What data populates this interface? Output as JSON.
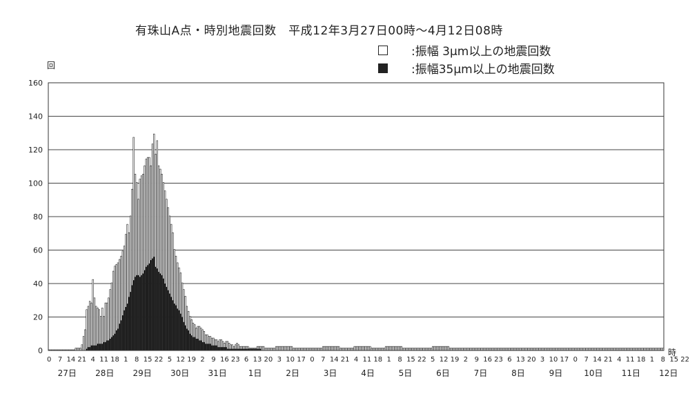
{
  "title": "有珠山A点・時別地震回数　平成12年3月27日00時～4月12日08時",
  "legend": [
    {
      "symbol": "□",
      "label": ":振幅 3μm以上の地震回数"
    },
    {
      "symbol": "■",
      "label": ":振幅35μm以上の地震回数"
    }
  ],
  "yunit": "回",
  "xunit": "時",
  "chart_data": {
    "type": "bar",
    "title": "有珠山A点・時別地震回数　平成12年3月27日00時～4月12日08時",
    "ylabel": "回",
    "xlabel": "時",
    "ylim": [
      0,
      160
    ],
    "yticks": [
      0,
      20,
      40,
      60,
      80,
      100,
      120,
      140,
      160
    ],
    "grid": "horizontal",
    "legend_position": "top-right",
    "hour_tick_labels": [
      "0",
      "7",
      "14",
      "21",
      "4",
      "11",
      "18",
      "1",
      "8",
      "15",
      "22",
      "5",
      "12",
      "19",
      "2",
      "9",
      "16",
      "23",
      "6",
      "13",
      "20",
      "3",
      "10",
      "17",
      "0",
      "7",
      "14",
      "21",
      "4",
      "11",
      "18",
      "1",
      "8",
      "15",
      "22",
      "5",
      "12",
      "19",
      "2",
      "9",
      "16",
      "23",
      "6",
      "13",
      "20",
      "3",
      "10",
      "17",
      "0",
      "7",
      "14",
      "21",
      "4",
      "11",
      "18",
      "1",
      "8",
      "15",
      "22"
    ],
    "day_labels": [
      "27日",
      "28日",
      "29日",
      "30日",
      "31日",
      "1日",
      "2日",
      "3日",
      "4日",
      "5日",
      "6日",
      "7日",
      "8日",
      "9日",
      "10日",
      "11日",
      "12日"
    ],
    "series": [
      {
        "name": "振幅 3μm以上の地震回数",
        "anchors": [
          [
            0,
            0
          ],
          [
            6,
            0
          ],
          [
            14,
            0
          ],
          [
            20,
            1
          ],
          [
            21,
            3
          ],
          [
            22,
            8
          ],
          [
            23,
            12
          ],
          [
            24,
            24
          ],
          [
            25,
            26
          ],
          [
            26,
            29
          ],
          [
            27,
            28
          ],
          [
            28,
            42
          ],
          [
            29,
            31
          ],
          [
            30,
            26
          ],
          [
            31,
            25
          ],
          [
            32,
            24
          ],
          [
            33,
            20
          ],
          [
            34,
            25
          ],
          [
            35,
            20
          ],
          [
            36,
            28
          ],
          [
            37,
            28
          ],
          [
            38,
            31
          ],
          [
            39,
            36
          ],
          [
            40,
            40
          ],
          [
            41,
            47
          ],
          [
            42,
            50
          ],
          [
            44,
            52
          ],
          [
            46,
            56
          ],
          [
            48,
            62
          ],
          [
            50,
            75
          ],
          [
            51,
            70
          ],
          [
            52,
            80
          ],
          [
            53,
            96
          ],
          [
            54,
            127
          ],
          [
            55,
            105
          ],
          [
            56,
            100
          ],
          [
            57,
            90
          ],
          [
            58,
            102
          ],
          [
            60,
            105
          ],
          [
            62,
            114
          ],
          [
            64,
            115
          ],
          [
            65,
            110
          ],
          [
            66,
            123
          ],
          [
            67,
            129
          ],
          [
            68,
            117
          ],
          [
            69,
            125
          ],
          [
            70,
            110
          ],
          [
            72,
            105
          ],
          [
            74,
            95
          ],
          [
            76,
            85
          ],
          [
            78,
            75
          ],
          [
            79,
            70
          ],
          [
            80,
            60
          ],
          [
            82,
            52
          ],
          [
            84,
            46
          ],
          [
            85,
            40
          ],
          [
            87,
            32
          ],
          [
            88,
            26
          ],
          [
            89,
            23
          ],
          [
            90,
            20
          ],
          [
            92,
            16
          ],
          [
            94,
            13
          ],
          [
            96,
            14
          ],
          [
            98,
            12
          ],
          [
            100,
            9
          ],
          [
            102,
            8
          ],
          [
            104,
            7
          ],
          [
            106,
            6
          ],
          [
            108,
            5
          ],
          [
            110,
            6
          ],
          [
            112,
            4
          ],
          [
            114,
            5
          ],
          [
            116,
            3
          ],
          [
            118,
            2
          ],
          [
            120,
            4
          ],
          [
            122,
            2
          ],
          [
            124,
            2
          ],
          [
            126,
            2
          ],
          [
            128,
            1
          ],
          [
            130,
            1
          ],
          [
            135,
            2
          ],
          [
            140,
            1
          ],
          [
            150,
            2
          ],
          [
            160,
            1
          ],
          [
            170,
            1
          ],
          [
            180,
            2
          ],
          [
            190,
            1
          ],
          [
            200,
            2
          ],
          [
            210,
            1
          ],
          [
            220,
            2
          ],
          [
            230,
            1
          ],
          [
            240,
            1
          ],
          [
            250,
            2
          ],
          [
            260,
            1
          ],
          [
            270,
            1
          ],
          [
            280,
            1
          ],
          [
            290,
            1
          ],
          [
            300,
            1
          ],
          [
            310,
            1
          ],
          [
            320,
            1
          ],
          [
            330,
            1
          ],
          [
            340,
            1
          ],
          [
            350,
            1
          ],
          [
            360,
            1
          ],
          [
            370,
            1
          ],
          [
            380,
            1
          ],
          [
            392,
            1
          ]
        ]
      },
      {
        "name": "振幅35μm以上の地震回数",
        "anchors": [
          [
            0,
            0
          ],
          [
            23,
            0
          ],
          [
            24,
            1
          ],
          [
            26,
            2
          ],
          [
            28,
            3
          ],
          [
            30,
            3
          ],
          [
            32,
            4
          ],
          [
            34,
            4
          ],
          [
            36,
            5
          ],
          [
            38,
            6
          ],
          [
            40,
            8
          ],
          [
            42,
            10
          ],
          [
            44,
            13
          ],
          [
            46,
            18
          ],
          [
            48,
            24
          ],
          [
            50,
            28
          ],
          [
            52,
            35
          ],
          [
            54,
            42
          ],
          [
            56,
            45
          ],
          [
            58,
            44
          ],
          [
            60,
            46
          ],
          [
            62,
            50
          ],
          [
            64,
            52
          ],
          [
            66,
            55
          ],
          [
            67,
            56
          ],
          [
            68,
            50
          ],
          [
            70,
            47
          ],
          [
            72,
            45
          ],
          [
            74,
            40
          ],
          [
            76,
            36
          ],
          [
            78,
            32
          ],
          [
            80,
            28
          ],
          [
            82,
            25
          ],
          [
            84,
            22
          ],
          [
            86,
            17
          ],
          [
            88,
            13
          ],
          [
            90,
            10
          ],
          [
            92,
            8
          ],
          [
            94,
            7
          ],
          [
            96,
            6
          ],
          [
            98,
            5
          ],
          [
            100,
            4
          ],
          [
            102,
            4
          ],
          [
            104,
            3
          ],
          [
            106,
            3
          ],
          [
            108,
            2
          ],
          [
            110,
            2
          ],
          [
            112,
            2
          ],
          [
            114,
            1
          ],
          [
            116,
            1
          ],
          [
            120,
            1
          ],
          [
            130,
            1
          ],
          [
            140,
            0
          ],
          [
            392,
            0
          ]
        ]
      }
    ]
  }
}
